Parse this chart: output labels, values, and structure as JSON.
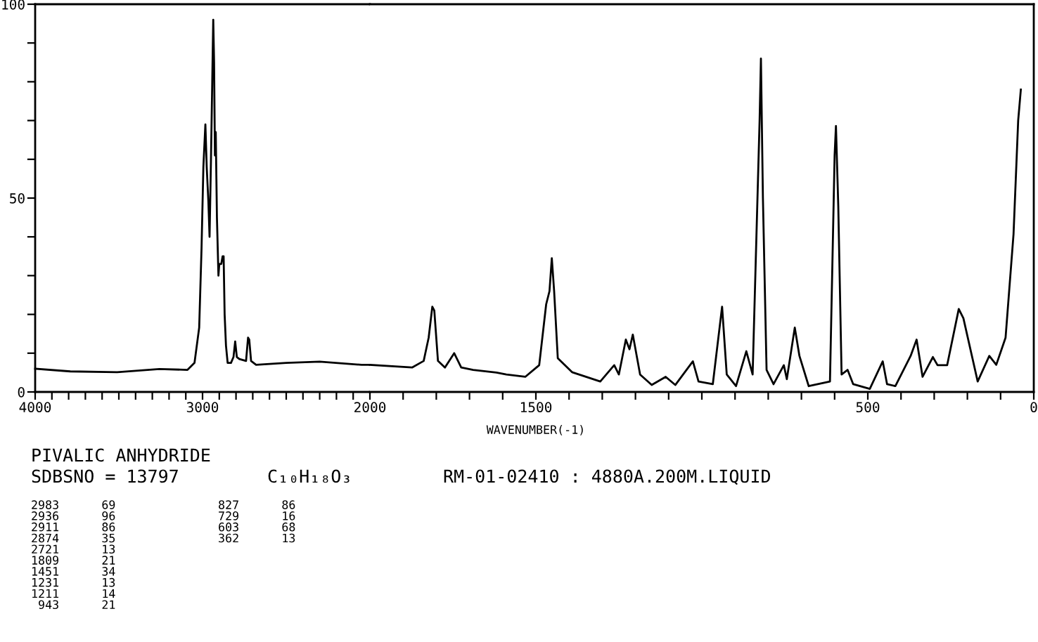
{
  "chart_data": [
    {
      "type": "line",
      "title": "PIVALIC ANHYDRIDE",
      "x": [
        4000,
        3790,
        3510,
        3258,
        3090,
        3048,
        3020,
        3006,
        2995,
        2983,
        2975,
        2965,
        2958,
        2950,
        2942,
        2936,
        2931,
        2926,
        2921,
        2914,
        2905,
        2900,
        2888,
        2880,
        2874,
        2868,
        2860,
        2850,
        2830,
        2815,
        2805,
        2795,
        2780,
        2740,
        2728,
        2721,
        2710,
        2680,
        2500,
        2300,
        2050,
        2010,
        2000
      ],
      "series": [
        {
          "color": "#000000",
          "values": [
            6.0,
            5.3,
            5.1,
            5.9,
            5.7,
            7.5,
            16.6,
            37,
            58,
            69,
            58,
            49,
            40,
            59,
            80,
            96,
            85,
            61,
            67,
            45,
            30,
            33,
            33,
            35,
            35,
            20,
            12,
            7.5,
            7.5,
            9,
            13,
            9,
            8.5,
            8,
            14,
            13.5,
            8,
            7,
            7.5,
            7.8,
            7,
            7,
            7
          ]
        }
      ],
      "xlim": [
        4000,
        2000
      ],
      "xticks": [
        4000,
        {
          "value": 3900,
          "label": null
        },
        {
          "value": 3800,
          "label": null
        },
        {
          "value": 3700,
          "label": null
        },
        {
          "value": 3600,
          "label": null
        },
        {
          "value": 3500,
          "label": null
        },
        {
          "value": 3400,
          "label": null
        },
        {
          "value": 3300,
          "label": null
        },
        {
          "value": 3200,
          "label": null
        },
        {
          "value": 3100,
          "label": null
        },
        3000,
        {
          "value": 2900,
          "label": null
        },
        {
          "value": 2800,
          "label": null
        },
        {
          "value": 2700,
          "label": null
        },
        {
          "value": 2600,
          "label": null
        },
        {
          "value": 2500,
          "label": null
        },
        {
          "value": 2400,
          "label": null
        },
        {
          "value": 2300,
          "label": null
        },
        {
          "value": 2200,
          "label": null
        },
        {
          "value": 2100,
          "label": null
        },
        2000
      ],
      "ylim": [
        0,
        100
      ],
      "yticks": [
        0,
        {
          "value": 10,
          "label": null
        },
        {
          "value": 20,
          "label": null
        },
        {
          "value": 30,
          "label": null
        },
        {
          "value": 40,
          "label": null
        },
        50,
        {
          "value": 60,
          "label": null
        },
        {
          "value": 70,
          "label": null
        },
        {
          "value": 80,
          "label": null
        },
        {
          "value": 90,
          "label": null
        },
        100
      ],
      "grid": false,
      "legend": false,
      "marker": "none",
      "line_style": "solid",
      "annotations": [
        "SDBSNO = 13797",
        "C₁₀H₁₈O₃",
        "RM-01-02410 : 4880A.200M.LIQUID",
        "2983      69",
        "2936      96",
        "2911      86",
        "2874      35",
        "2721      13",
        "1809      21",
        "1451      34",
        "1231      13",
        "1211      14",
        " 943      21",
        " 827      86",
        " 729      16",
        " 603      68",
        " 362      13"
      ]
    },
    {
      "type": "line",
      "xlabel": "WAVENUMBER(-1)",
      "x": [
        2000,
        1873,
        1838,
        1823,
        1812,
        1806,
        1795,
        1774,
        1746,
        1725,
        1689,
        1619,
        1589,
        1532,
        1490,
        1469,
        1459,
        1452,
        1445,
        1434,
        1391,
        1306,
        1264,
        1250,
        1229,
        1218,
        1208,
        1186,
        1151,
        1109,
        1080,
        1027,
        1010,
        967,
        939,
        925,
        897,
        866,
        847,
        826,
        822,
        816,
        805,
        784,
        753,
        744,
        720,
        706,
        678,
        614,
        600,
        596,
        589,
        579,
        561,
        544,
        494,
        455,
        442,
        417,
        371,
        353,
        335,
        304,
        290,
        261,
        226,
        212,
        169,
        134,
        113,
        85,
        61,
        47,
        39
      ],
      "series": [
        {
          "color": "#000000",
          "values": [
            7,
            6.3,
            8,
            14,
            22,
            21,
            8,
            6.3,
            10,
            6.3,
            5.7,
            5,
            4.5,
            3.9,
            6.9,
            22.6,
            26,
            34.5,
            26,
            8.7,
            5.1,
            2.7,
            6.9,
            4.5,
            13.5,
            11,
            14.8,
            4.5,
            1.8,
            3.9,
            1.8,
            7.9,
            2.7,
            2,
            22,
            4.5,
            1.5,
            10.5,
            4.5,
            70,
            86,
            50,
            5.7,
            2,
            6.9,
            3.3,
            16.6,
            9.3,
            1.5,
            2.7,
            61,
            68.6,
            48,
            4.5,
            5.7,
            2,
            0.8,
            7.9,
            2,
            1.5,
            9.3,
            13.5,
            3.9,
            9,
            6.9,
            6.9,
            21.4,
            19,
            2.7,
            9.3,
            7,
            14,
            40.7,
            70,
            78
          ]
        }
      ],
      "xlim": [
        2000,
        0
      ],
      "xticks": [
        {
          "value": 1900,
          "label": null
        },
        {
          "value": 1800,
          "label": null
        },
        {
          "value": 1700,
          "label": null
        },
        {
          "value": 1600,
          "label": null
        },
        1500,
        {
          "value": 1400,
          "label": null
        },
        {
          "value": 1300,
          "label": null
        },
        {
          "value": 1200,
          "label": null
        },
        {
          "value": 1100,
          "label": null
        },
        {
          "value": 1000,
          "label": null
        },
        {
          "value": 900,
          "label": null
        },
        {
          "value": 800,
          "label": null
        },
        {
          "value": 700,
          "label": null
        },
        {
          "value": 600,
          "label": null
        },
        500,
        {
          "value": 400,
          "label": null
        },
        {
          "value": 300,
          "label": null
        },
        {
          "value": 200,
          "label": null
        },
        {
          "value": 100,
          "label": null
        },
        0
      ],
      "ylim": [
        0,
        100
      ],
      "tick_labels": "x",
      "grid": false,
      "legend": false,
      "marker": "none",
      "line_style": "solid"
    }
  ]
}
